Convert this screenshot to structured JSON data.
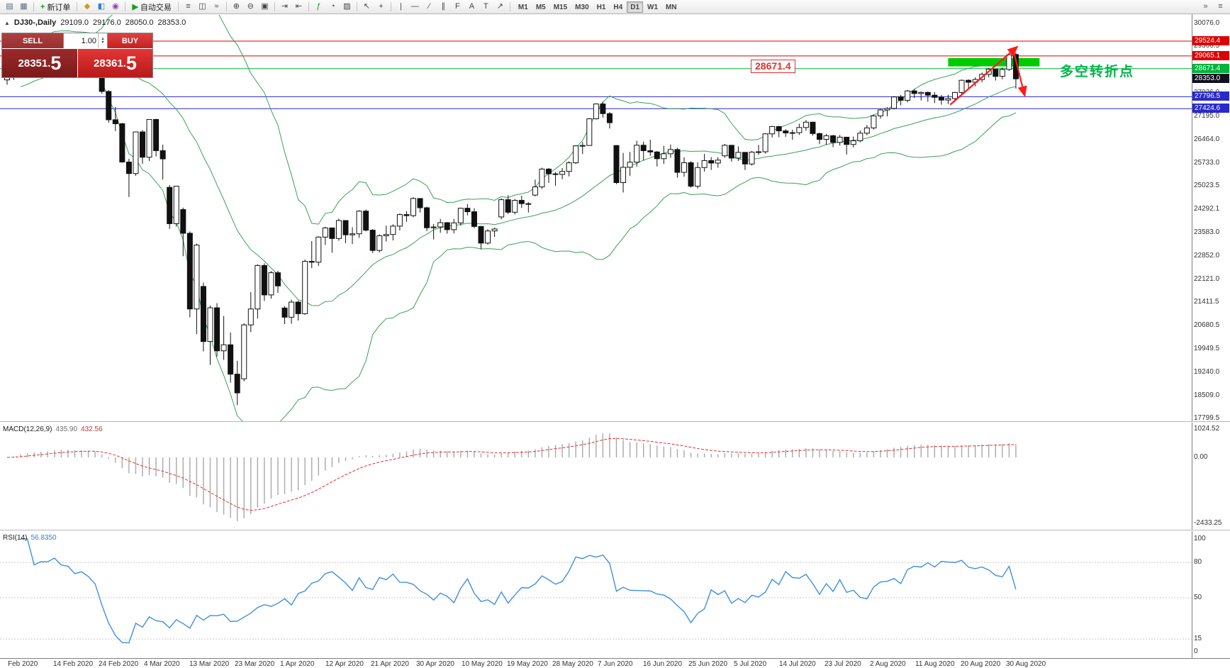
{
  "toolbar": {
    "items": [
      {
        "t": "icon",
        "name": "new-chart-icon",
        "g": "▤",
        "c": "#5a6b7a"
      },
      {
        "t": "icon",
        "name": "profiles-icon",
        "g": "▦",
        "c": "#5a6b7a"
      },
      {
        "t": "sep"
      },
      {
        "t": "btn",
        "name": "new-order-button",
        "g": "+",
        "gc": "#149914",
        "label": "新订单"
      },
      {
        "t": "sep"
      },
      {
        "t": "icon",
        "name": "market-watch-icon",
        "g": "◆",
        "c": "#d09a1e"
      },
      {
        "t": "icon",
        "name": "data-window-icon",
        "g": "◧",
        "c": "#2f7fd0"
      },
      {
        "t": "icon",
        "name": "navigator-icon",
        "g": "◉",
        "c": "#8e44ad"
      },
      {
        "t": "sep"
      },
      {
        "t": "btn",
        "name": "auto-trading-button",
        "g": "▶",
        "gc": "#18a018",
        "label": "自动交易"
      },
      {
        "t": "sep"
      },
      {
        "t": "icon",
        "name": "bar-chart-mode-icon",
        "g": "≡",
        "c": "#444444"
      },
      {
        "t": "icon",
        "name": "candlestick-mode-icon",
        "g": "◫",
        "c": "#444444"
      },
      {
        "t": "icon",
        "name": "line-chart-mode-icon",
        "g": "≈",
        "c": "#444444"
      },
      {
        "t": "sep"
      },
      {
        "t": "icon",
        "name": "zoom-in-icon",
        "g": "⊕",
        "c": "#444444"
      },
      {
        "t": "icon",
        "name": "zoom-out-icon",
        "g": "⊖",
        "c": "#444444"
      },
      {
        "t": "icon",
        "name": "tile-windows-icon",
        "g": "▣",
        "c": "#444444"
      },
      {
        "t": "sep"
      },
      {
        "t": "icon",
        "name": "auto-scroll-icon",
        "g": "⇥",
        "c": "#444444"
      },
      {
        "t": "icon",
        "name": "chart-shift-icon",
        "g": "⇤",
        "c": "#444444"
      },
      {
        "t": "sep"
      },
      {
        "t": "icon",
        "name": "indicators-icon",
        "g": "ƒ",
        "c": "#149914"
      },
      {
        "t": "icon",
        "name": "periods-icon",
        "g": "◔",
        "c": "#444444"
      },
      {
        "t": "icon",
        "name": "templates-icon",
        "g": "▨",
        "c": "#444444"
      },
      {
        "t": "sep"
      },
      {
        "t": "icon",
        "name": "cursor-tool-icon",
        "g": "↖",
        "c": "#444444"
      },
      {
        "t": "icon",
        "name": "crosshair-tool-icon",
        "g": "+",
        "c": "#444444"
      },
      {
        "t": "sep"
      },
      {
        "t": "icon",
        "name": "vertical-line-tool-icon",
        "g": "|",
        "c": "#444444"
      },
      {
        "t": "icon",
        "name": "horizontal-line-tool-icon",
        "g": "—",
        "c": "#444444"
      },
      {
        "t": "icon",
        "name": "trendline-tool-icon",
        "g": "∕",
        "c": "#444444"
      },
      {
        "t": "icon",
        "name": "channel-tool-icon",
        "g": "∥",
        "c": "#444444"
      },
      {
        "t": "icon",
        "name": "fibonacci-tool-icon",
        "g": "F",
        "c": "#444444"
      },
      {
        "t": "icon",
        "name": "text-tool-icon",
        "g": "A",
        "c": "#444444"
      },
      {
        "t": "icon",
        "name": "label-tool-icon",
        "g": "T",
        "c": "#444444"
      },
      {
        "t": "icon",
        "name": "arrows-tool-icon",
        "g": "↗",
        "c": "#444444"
      },
      {
        "t": "sep"
      }
    ],
    "timeframes": [
      "M1",
      "M5",
      "M15",
      "M30",
      "H1",
      "H4",
      "D1",
      "W1",
      "MN"
    ],
    "active_timeframe": "D1",
    "right_icons": [
      {
        "name": "toolbar-overflow-icon",
        "g": "»",
        "c": "#555555"
      },
      {
        "name": "toolbar-menu-icon",
        "g": "≡",
        "c": "#555555"
      }
    ]
  },
  "chart_header": {
    "collapse_glyph": "▲",
    "symbol": "DJ30-,Daily",
    "open": "29109.0",
    "high": "29176.0",
    "low": "28050.0",
    "close": "28353.0"
  },
  "trade": {
    "sell_label": "SELL",
    "buy_label": "BUY",
    "volume": "1.00",
    "sell_price": "28351.5",
    "buy_price": "28361.5"
  },
  "chart_data": {
    "type": "candlestick",
    "symbol": "DJ30-",
    "timeframe": "Daily",
    "y_range": {
      "top": 30076.0,
      "bottom": 17799.5
    },
    "y_ticks": [
      "30076.0",
      "29366.5",
      "28635.5",
      "27926.0",
      "27195.0",
      "26464.0",
      "25733.0",
      "25023.5",
      "24292.1",
      "23583.0",
      "22852.0",
      "22121.0",
      "21411.5",
      "20680.5",
      "19949.5",
      "19240.0",
      "18509.0",
      "17799.5"
    ],
    "price_lines": [
      {
        "price": 29524.4,
        "label": "29524.4",
        "color": "#dd0000"
      },
      {
        "price": 29065.1,
        "label": "29065.1",
        "color": "#dd0000"
      },
      {
        "price": 28671.4,
        "label": "28671.4",
        "color": "#00b33c"
      },
      {
        "price": 27796.5,
        "label": "27796.5",
        "color": "#2929cc"
      },
      {
        "price": 27424.6,
        "label": "27424.6",
        "color": "#2929cc"
      }
    ],
    "bid": {
      "price": 28353.0,
      "label": "28353.0",
      "box_color": "#10101e"
    },
    "bollinger": {
      "period": 20,
      "deviation": 2,
      "color": "#3aa05a"
    },
    "candles": [
      [
        28320,
        28420,
        28170,
        28400
      ],
      [
        28400,
        28830,
        28320,
        28807
      ],
      [
        28807,
        29310,
        28780,
        29291
      ],
      [
        29291,
        29409,
        29180,
        29380
      ],
      [
        29380,
        29408,
        29056,
        29103
      ],
      [
        29103,
        29300,
        29050,
        29277
      ],
      [
        29277,
        29415,
        29210,
        29276
      ],
      [
        29276,
        29568,
        29240,
        29551
      ],
      [
        29551,
        29570,
        29320,
        29423
      ],
      [
        29423,
        29475,
        29280,
        29398
      ],
      [
        29398,
        29410,
        29090,
        29232
      ],
      [
        29232,
        29360,
        29150,
        29348
      ],
      [
        29348,
        29409,
        29150,
        29220
      ],
      [
        29220,
        29250,
        28890,
        28992
      ],
      [
        28403,
        28450,
        27890,
        27961
      ],
      [
        27961,
        28000,
        26990,
        27081
      ],
      [
        27081,
        27480,
        26730,
        26958
      ],
      [
        26958,
        26980,
        25750,
        25767
      ],
      [
        25767,
        25870,
        24680,
        25409
      ],
      [
        25409,
        26710,
        25340,
        26703
      ],
      [
        26703,
        26760,
        25710,
        25917
      ],
      [
        25917,
        27100,
        25800,
        27091
      ],
      [
        27091,
        27110,
        25940,
        26121
      ],
      [
        26121,
        26310,
        25220,
        25865
      ],
      [
        24980,
        25050,
        23690,
        23851
      ],
      [
        23851,
        25020,
        23760,
        25018
      ],
      [
        24290,
        24350,
        22840,
        23553
      ],
      [
        23553,
        23610,
        20940,
        21200
      ],
      [
        21200,
        23230,
        20420,
        23186
      ],
      [
        21900,
        22020,
        19880,
        20188
      ],
      [
        20188,
        21310,
        19460,
        21237
      ],
      [
        21237,
        21380,
        19720,
        19899
      ],
      [
        19899,
        20980,
        19620,
        20087
      ],
      [
        20087,
        20470,
        18910,
        19174
      ],
      [
        19174,
        19590,
        18210,
        18592
      ],
      [
        19030,
        20760,
        18950,
        20705
      ],
      [
        20705,
        21720,
        20480,
        21200
      ],
      [
        21200,
        22590,
        20900,
        22552
      ],
      [
        22552,
        22620,
        21450,
        21637
      ],
      [
        21637,
        22380,
        21520,
        22327
      ],
      [
        22327,
        22390,
        21700,
        21917
      ],
      [
        21230,
        21290,
        20730,
        20944
      ],
      [
        20944,
        21490,
        20740,
        21413
      ],
      [
        21413,
        21460,
        20840,
        21053
      ],
      [
        21053,
        22740,
        21020,
        22680
      ],
      [
        22680,
        23310,
        22470,
        22654
      ],
      [
        22654,
        23460,
        22540,
        23434
      ],
      [
        23434,
        23760,
        23190,
        23719
      ],
      [
        23719,
        23730,
        22950,
        23391
      ],
      [
        23391,
        24010,
        23320,
        23949
      ],
      [
        23949,
        23960,
        23250,
        23504
      ],
      [
        23504,
        23740,
        23220,
        23537
      ],
      [
        23537,
        24270,
        23410,
        24242
      ],
      [
        24242,
        24290,
        23610,
        23650
      ],
      [
        23650,
        23680,
        22940,
        23019
      ],
      [
        23019,
        23520,
        22960,
        23476
      ],
      [
        23476,
        23790,
        23300,
        23515
      ],
      [
        23515,
        23830,
        23330,
        23775
      ],
      [
        23775,
        24170,
        23640,
        24134
      ],
      [
        24134,
        24240,
        23910,
        24102
      ],
      [
        24102,
        24680,
        24050,
        24634
      ],
      [
        24634,
        24640,
        24200,
        24346
      ],
      [
        24346,
        24380,
        23620,
        23724
      ],
      [
        23724,
        23840,
        23360,
        23749
      ],
      [
        23749,
        24000,
        23570,
        23883
      ],
      [
        23883,
        23900,
        23540,
        23665
      ],
      [
        23665,
        24000,
        23550,
        23876
      ],
      [
        23876,
        24350,
        23790,
        24331
      ],
      [
        24331,
        24460,
        24110,
        24222
      ],
      [
        24222,
        24330,
        23710,
        23765
      ],
      [
        23765,
        23780,
        23060,
        23248
      ],
      [
        23248,
        23680,
        23200,
        23625
      ],
      [
        23625,
        23730,
        23440,
        23685
      ],
      [
        24060,
        24640,
        23990,
        24597
      ],
      [
        24597,
        24740,
        24150,
        24207
      ],
      [
        24207,
        24620,
        24140,
        24576
      ],
      [
        24576,
        24720,
        24340,
        24474
      ],
      [
        24474,
        24520,
        24200,
        24465
      ],
      [
        24740,
        25220,
        24700,
        24995
      ],
      [
        24995,
        25590,
        24930,
        25548
      ],
      [
        25548,
        25580,
        25120,
        25401
      ],
      [
        25401,
        25460,
        25030,
        25383
      ],
      [
        25383,
        25580,
        25230,
        25475
      ],
      [
        25475,
        25790,
        25320,
        25743
      ],
      [
        25743,
        26290,
        25710,
        26270
      ],
      [
        26270,
        26390,
        26020,
        26282
      ],
      [
        26282,
        27130,
        26280,
        27111
      ],
      [
        27111,
        27590,
        27090,
        27572
      ],
      [
        27572,
        27640,
        27150,
        27272
      ],
      [
        27272,
        27320,
        26810,
        26990
      ],
      [
        26280,
        26290,
        25080,
        25128
      ],
      [
        25128,
        26050,
        24820,
        25605
      ],
      [
        25605,
        26080,
        25340,
        25763
      ],
      [
        25763,
        26430,
        25620,
        26290
      ],
      [
        26290,
        26400,
        25810,
        26120
      ],
      [
        26120,
        26460,
        25960,
        26080
      ],
      [
        26080,
        26110,
        25630,
        25871
      ],
      [
        25871,
        26270,
        25710,
        26025
      ],
      [
        26025,
        26310,
        25900,
        26156
      ],
      [
        26156,
        26210,
        25280,
        25446
      ],
      [
        25446,
        25920,
        25310,
        25746
      ],
      [
        25746,
        25790,
        24970,
        25016
      ],
      [
        25016,
        25760,
        24940,
        25596
      ],
      [
        25596,
        26020,
        25470,
        25813
      ],
      [
        25813,
        25920,
        25520,
        25735
      ],
      [
        25735,
        25920,
        25590,
        25827
      ],
      [
        25960,
        26330,
        25900,
        26287
      ],
      [
        26287,
        26300,
        25780,
        25890
      ],
      [
        25890,
        26250,
        25800,
        26067
      ],
      [
        26067,
        26080,
        25520,
        25706
      ],
      [
        25706,
        26110,
        25660,
        26075
      ],
      [
        26075,
        26300,
        25990,
        26086
      ],
      [
        26086,
        26660,
        26030,
        26643
      ],
      [
        26643,
        26890,
        26530,
        26870
      ],
      [
        26870,
        26890,
        26540,
        26735
      ],
      [
        26735,
        26790,
        26550,
        26672
      ],
      [
        26672,
        26770,
        26460,
        26681
      ],
      [
        26681,
        26960,
        26610,
        26840
      ],
      [
        26840,
        27070,
        26740,
        27006
      ],
      [
        27006,
        27020,
        26590,
        26652
      ],
      [
        26652,
        26680,
        26320,
        26470
      ],
      [
        26470,
        26640,
        26300,
        26585
      ],
      [
        26585,
        26610,
        26230,
        26379
      ],
      [
        26379,
        26610,
        26280,
        26540
      ],
      [
        26540,
        26550,
        26000,
        26313
      ],
      [
        26313,
        26560,
        26220,
        26428
      ],
      [
        26428,
        26750,
        26380,
        26664
      ],
      [
        26664,
        26920,
        26600,
        26828
      ],
      [
        26828,
        27230,
        26780,
        27202
      ],
      [
        27202,
        27420,
        27120,
        27387
      ],
      [
        27387,
        27470,
        27190,
        27433
      ],
      [
        27433,
        27810,
        27400,
        27791
      ],
      [
        27791,
        27850,
        27530,
        27686
      ],
      [
        27686,
        28010,
        27620,
        27977
      ],
      [
        27977,
        28040,
        27760,
        27897
      ],
      [
        27897,
        27960,
        27680,
        27931
      ],
      [
        27931,
        27960,
        27640,
        27845
      ],
      [
        27845,
        27940,
        27600,
        27778
      ],
      [
        27778,
        27850,
        27550,
        27693
      ],
      [
        27693,
        27860,
        27570,
        27740
      ],
      [
        27740,
        27950,
        27640,
        27930
      ],
      [
        27930,
        28330,
        27880,
        28308
      ],
      [
        28308,
        28340,
        28060,
        28248
      ],
      [
        28248,
        28400,
        28120,
        28332
      ],
      [
        28332,
        28550,
        28250,
        28492
      ],
      [
        28492,
        28690,
        28400,
        28654
      ],
      [
        28654,
        28660,
        28300,
        28430
      ],
      [
        28430,
        28710,
        28340,
        28645
      ],
      [
        28645,
        29130,
        28600,
        29101
      ],
      [
        29109,
        29176,
        28050,
        28353
      ]
    ],
    "x_labels": [
      "Feb 2020",
      "14 Feb 2020",
      "24 Feb 2020",
      "4 Mar 2020",
      "13 Mar 2020",
      "23 Mar 2020",
      "1 Apr 2020",
      "12 Apr 2020",
      "21 Apr 2020",
      "30 Apr 2020",
      "10 May 2020",
      "19 May 2020",
      "28 May 2020",
      "7 Jun 2020",
      "16 Jun 2020",
      "25 Jun 2020",
      "5 Jul 2020",
      "14 Jul 2020",
      "23 Jul 2020",
      "2 Aug 2020",
      "11 Aug 2020",
      "20 Aug 2020",
      "30 Aug 2020"
    ],
    "macd": {
      "label": "MACD(12,26,9)",
      "main_value": "435.90",
      "signal_value": "432.56",
      "axis_labels": [
        "1024.52",
        "0.00",
        "-2433.25"
      ],
      "histogram_color": "#a8a8a8",
      "signal_color": "#e03131"
    },
    "rsi": {
      "label": "RSI(14)",
      "value": "56.8350",
      "axis_labels": [
        "100",
        "80",
        "50",
        "15",
        "0"
      ],
      "levels": [
        80,
        50,
        15
      ],
      "line_color": "#3f8fde",
      "level_color": "#c9c9c9"
    },
    "annotations": {
      "zone": {
        "start_index": 139,
        "end_index": 152.5,
        "price_top": 29000,
        "price_bottom": 28740,
        "color": "#00cc00"
      },
      "arrows": {
        "color": "#ff1a1a",
        "up": {
          "from_index": 139.3,
          "from_price": 27550,
          "to_index": 149.2,
          "to_price": 29350
        },
        "down": {
          "from_index": 148.6,
          "from_price": 29270,
          "to_index": 150.3,
          "to_price": 27830
        }
      },
      "price_callout": {
        "text": "28671.4",
        "color": "#e03030"
      },
      "note": {
        "text": "多空转折点",
        "color": "#00b44a"
      }
    }
  }
}
